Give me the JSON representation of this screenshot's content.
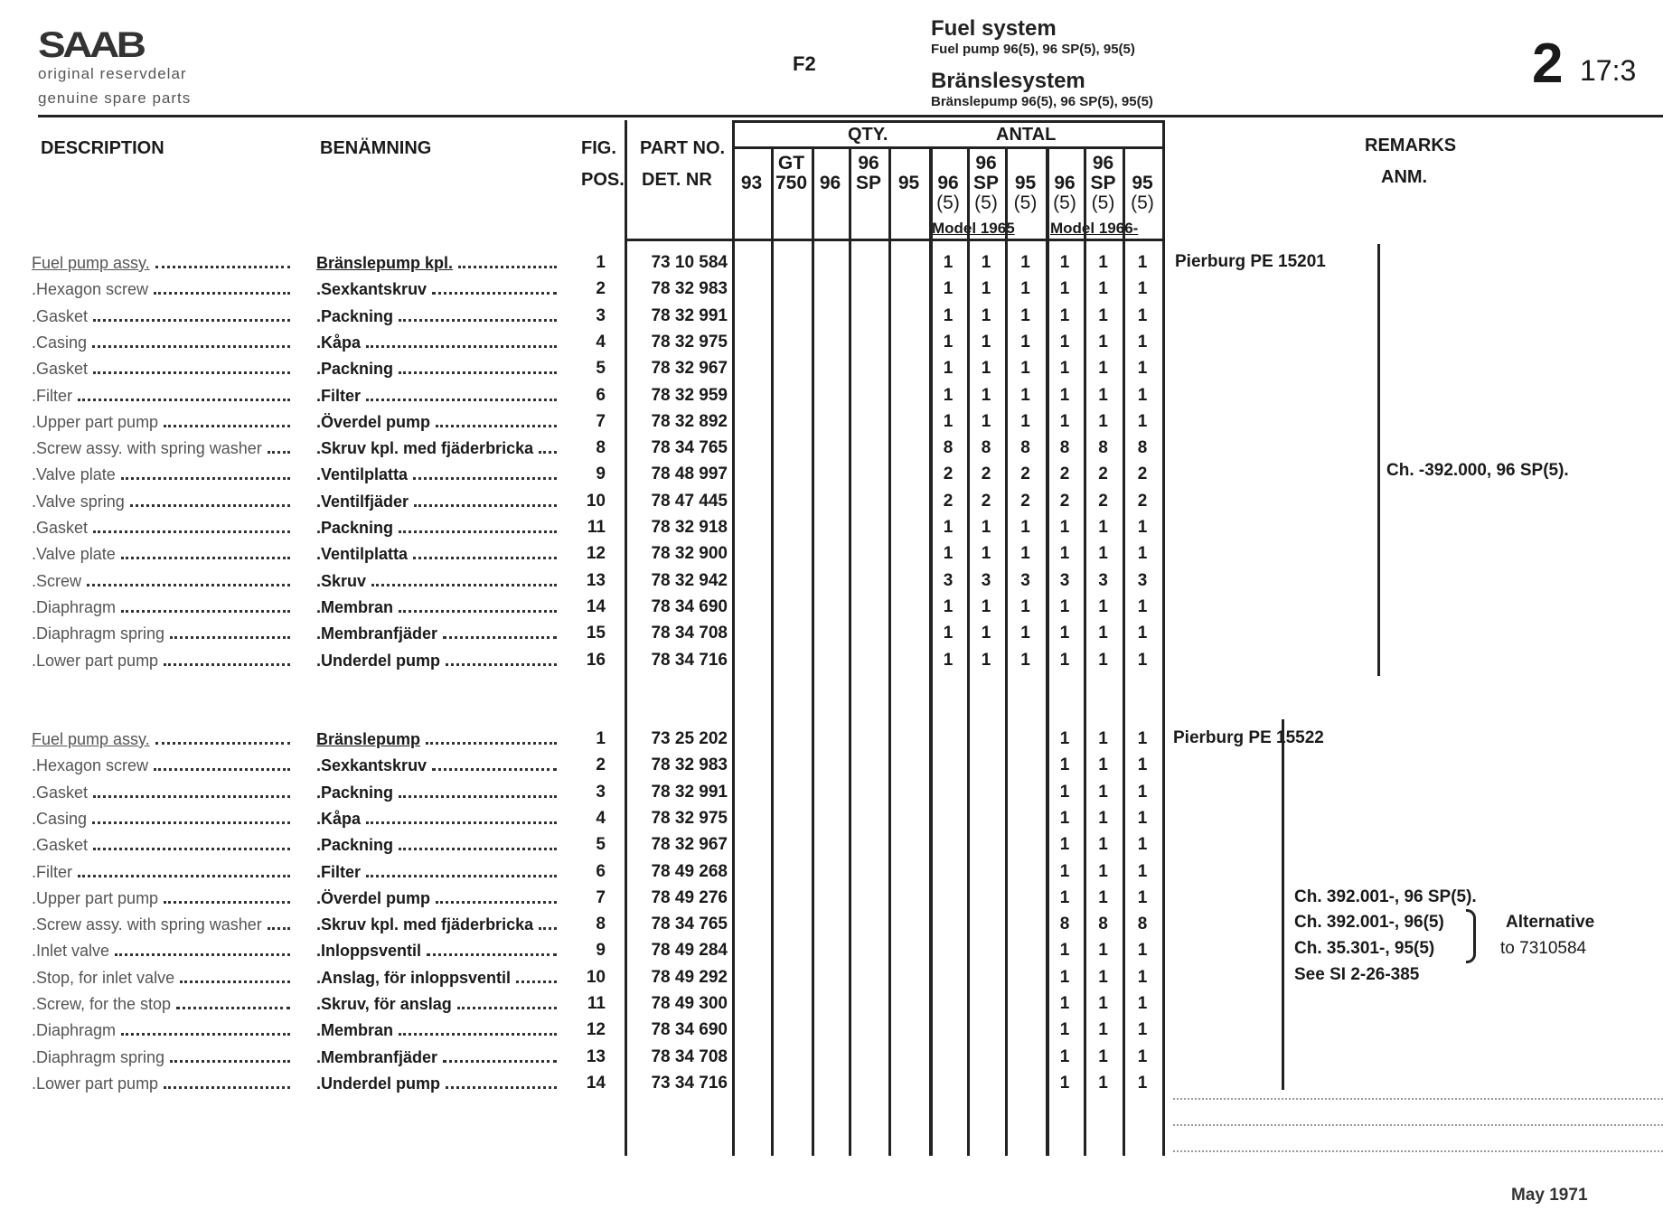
{
  "header": {
    "logo": "SAAB",
    "tagline_sv": "original reservdelar",
    "tagline_en": "genuine spare parts",
    "section_code": "F2",
    "title_en": "Fuel system",
    "subtitle_en": "Fuel pump 96(5), 96 SP(5), 95(5)",
    "title_sv": "Bränslesystem",
    "subtitle_sv": "Bränslepump 96(5), 96 SP(5), 95(5)",
    "page_major": "2",
    "page_minor": "17:3"
  },
  "columns": {
    "description": "DESCRIPTION",
    "benamning": "BENÄMNING",
    "fig": "FIG.",
    "pos": "POS.",
    "part_no": "PART NO.",
    "det_nr": "DET. NR",
    "qty": "QTY.",
    "antal": "ANTAL",
    "remarks": "REMARKS",
    "anm": "ANM.",
    "models": [
      {
        "top": "",
        "bottom": "93"
      },
      {
        "top": "GT",
        "bottom": "750"
      },
      {
        "top": "",
        "bottom": "96"
      },
      {
        "top": "96",
        "bottom": "SP"
      },
      {
        "top": "",
        "bottom": "95"
      },
      {
        "top": "",
        "bottom": "96",
        "sub": "(5)"
      },
      {
        "top": "96",
        "bottom": "SP",
        "sub": "(5)"
      },
      {
        "top": "",
        "bottom": "95",
        "sub": "(5)"
      },
      {
        "top": "",
        "bottom": "96",
        "sub": "(5)"
      },
      {
        "top": "96",
        "bottom": "SP",
        "sub": "(5)"
      },
      {
        "top": "",
        "bottom": "95",
        "sub": "(5)"
      }
    ],
    "model_1965": "Model 1965",
    "model_1966": "Model 1966-"
  },
  "groups": [
    {
      "remark_main": "Pierburg PE 15201",
      "remark_chassis": [
        "Ch. -392.000, 96 SP(5)."
      ],
      "rows": [
        {
          "desc": "Fuel pump assy.",
          "ben": "Bränslepump kpl.",
          "pos": "1",
          "part": "73 10 584",
          "qty": [
            "",
            "",
            "",
            "",
            "",
            "1",
            "1",
            "1",
            "1",
            "1",
            "1"
          ]
        },
        {
          "desc": ".Hexagon screw",
          "ben": ".Sexkantskruv",
          "pos": "2",
          "part": "78 32 983",
          "qty": [
            "",
            "",
            "",
            "",
            "",
            "1",
            "1",
            "1",
            "1",
            "1",
            "1"
          ]
        },
        {
          "desc": ".Gasket",
          "ben": ".Packning",
          "pos": "3",
          "part": "78 32 991",
          "qty": [
            "",
            "",
            "",
            "",
            "",
            "1",
            "1",
            "1",
            "1",
            "1",
            "1"
          ]
        },
        {
          "desc": ".Casing",
          "ben": ".Kåpa",
          "pos": "4",
          "part": "78 32 975",
          "qty": [
            "",
            "",
            "",
            "",
            "",
            "1",
            "1",
            "1",
            "1",
            "1",
            "1"
          ]
        },
        {
          "desc": ".Gasket",
          "ben": ".Packning",
          "pos": "5",
          "part": "78 32 967",
          "qty": [
            "",
            "",
            "",
            "",
            "",
            "1",
            "1",
            "1",
            "1",
            "1",
            "1"
          ]
        },
        {
          "desc": ".Filter",
          "ben": ".Filter",
          "pos": "6",
          "part": "78 32 959",
          "qty": [
            "",
            "",
            "",
            "",
            "",
            "1",
            "1",
            "1",
            "1",
            "1",
            "1"
          ]
        },
        {
          "desc": ".Upper part pump",
          "ben": ".Överdel pump",
          "pos": "7",
          "part": "78 32 892",
          "qty": [
            "",
            "",
            "",
            "",
            "",
            "1",
            "1",
            "1",
            "1",
            "1",
            "1"
          ]
        },
        {
          "desc": ".Screw assy. with spring washer",
          "ben": ".Skruv kpl. med fjäderbricka",
          "pos": "8",
          "part": "78 34 765",
          "qty": [
            "",
            "",
            "",
            "",
            "",
            "8",
            "8",
            "8",
            "8",
            "8",
            "8"
          ]
        },
        {
          "desc": ".Valve plate",
          "ben": ".Ventilplatta",
          "pos": "9",
          "part": "78 48 997",
          "qty": [
            "",
            "",
            "",
            "",
            "",
            "2",
            "2",
            "2",
            "2",
            "2",
            "2"
          ]
        },
        {
          "desc": ".Valve spring",
          "ben": ".Ventilfjäder",
          "pos": "10",
          "part": "78 47 445",
          "qty": [
            "",
            "",
            "",
            "",
            "",
            "2",
            "2",
            "2",
            "2",
            "2",
            "2"
          ]
        },
        {
          "desc": ".Gasket",
          "ben": ".Packning",
          "pos": "11",
          "part": "78 32 918",
          "qty": [
            "",
            "",
            "",
            "",
            "",
            "1",
            "1",
            "1",
            "1",
            "1",
            "1"
          ]
        },
        {
          "desc": ".Valve plate",
          "ben": ".Ventilplatta",
          "pos": "12",
          "part": "78 32 900",
          "qty": [
            "",
            "",
            "",
            "",
            "",
            "1",
            "1",
            "1",
            "1",
            "1",
            "1"
          ]
        },
        {
          "desc": ".Screw",
          "ben": ".Skruv",
          "pos": "13",
          "part": "78 32 942",
          "qty": [
            "",
            "",
            "",
            "",
            "",
            "3",
            "3",
            "3",
            "3",
            "3",
            "3"
          ]
        },
        {
          "desc": ".Diaphragm",
          "ben": ".Membran",
          "pos": "14",
          "part": "78 34 690",
          "qty": [
            "",
            "",
            "",
            "",
            "",
            "1",
            "1",
            "1",
            "1",
            "1",
            "1"
          ]
        },
        {
          "desc": ".Diaphragm spring",
          "ben": ".Membranfjäder",
          "pos": "15",
          "part": "78 34 708",
          "qty": [
            "",
            "",
            "",
            "",
            "",
            "1",
            "1",
            "1",
            "1",
            "1",
            "1"
          ]
        },
        {
          "desc": ".Lower part pump",
          "ben": ".Underdel pump",
          "pos": "16",
          "part": "78 34 716",
          "qty": [
            "",
            "",
            "",
            "",
            "",
            "1",
            "1",
            "1",
            "1",
            "1",
            "1"
          ]
        }
      ]
    },
    {
      "remark_main": "Pierburg PE 15522",
      "remark_chassis": [
        "Ch. 392.001-, 96 SP(5).",
        "Ch. 392.001-, 96(5)",
        "Ch. 35.301-, 95(5)",
        "See SI 2-26-385"
      ],
      "remark_alt": [
        "Alternative",
        "to 7310584"
      ],
      "rows": [
        {
          "desc": "Fuel pump assy.",
          "ben": "Bränslepump",
          "pos": "1",
          "part": "73 25 202",
          "qty": [
            "",
            "",
            "",
            "",
            "",
            "",
            "",
            "",
            "1",
            "1",
            "1"
          ]
        },
        {
          "desc": ".Hexagon screw",
          "ben": ".Sexkantskruv",
          "pos": "2",
          "part": "78 32 983",
          "qty": [
            "",
            "",
            "",
            "",
            "",
            "",
            "",
            "",
            "1",
            "1",
            "1"
          ]
        },
        {
          "desc": ".Gasket",
          "ben": ".Packning",
          "pos": "3",
          "part": "78 32 991",
          "qty": [
            "",
            "",
            "",
            "",
            "",
            "",
            "",
            "",
            "1",
            "1",
            "1"
          ]
        },
        {
          "desc": ".Casing",
          "ben": ".Kåpa",
          "pos": "4",
          "part": "78 32 975",
          "qty": [
            "",
            "",
            "",
            "",
            "",
            "",
            "",
            "",
            "1",
            "1",
            "1"
          ]
        },
        {
          "desc": ".Gasket",
          "ben": ".Packning",
          "pos": "5",
          "part": "78 32 967",
          "qty": [
            "",
            "",
            "",
            "",
            "",
            "",
            "",
            "",
            "1",
            "1",
            "1"
          ]
        },
        {
          "desc": ".Filter",
          "ben": ".Filter",
          "pos": "6",
          "part": "78 49 268",
          "qty": [
            "",
            "",
            "",
            "",
            "",
            "",
            "",
            "",
            "1",
            "1",
            "1"
          ]
        },
        {
          "desc": ".Upper part pump",
          "ben": ".Överdel pump",
          "pos": "7",
          "part": "78 49 276",
          "qty": [
            "",
            "",
            "",
            "",
            "",
            "",
            "",
            "",
            "1",
            "1",
            "1"
          ]
        },
        {
          "desc": ".Screw assy. with spring washer",
          "ben": ".Skruv kpl. med fjäderbricka",
          "pos": "8",
          "part": "78 34 765",
          "qty": [
            "",
            "",
            "",
            "",
            "",
            "",
            "",
            "",
            "8",
            "8",
            "8"
          ]
        },
        {
          "desc": ".Inlet valve",
          "ben": ".Inloppsventil",
          "pos": "9",
          "part": "78 49 284",
          "qty": [
            "",
            "",
            "",
            "",
            "",
            "",
            "",
            "",
            "1",
            "1",
            "1"
          ]
        },
        {
          "desc": ".Stop, for inlet valve",
          "ben": ".Anslag, för inloppsventil",
          "pos": "10",
          "part": "78 49 292",
          "qty": [
            "",
            "",
            "",
            "",
            "",
            "",
            "",
            "",
            "1",
            "1",
            "1"
          ]
        },
        {
          "desc": ".Screw, for the stop",
          "ben": ".Skruv, för anslag",
          "pos": "11",
          "part": "78 49 300",
          "qty": [
            "",
            "",
            "",
            "",
            "",
            "",
            "",
            "",
            "1",
            "1",
            "1"
          ]
        },
        {
          "desc": ".Diaphragm",
          "ben": ".Membran",
          "pos": "12",
          "part": "78 34 690",
          "qty": [
            "",
            "",
            "",
            "",
            "",
            "",
            "",
            "",
            "1",
            "1",
            "1"
          ]
        },
        {
          "desc": ".Diaphragm spring",
          "ben": ".Membranfjäder",
          "pos": "13",
          "part": "78 34 708",
          "qty": [
            "",
            "",
            "",
            "",
            "",
            "",
            "",
            "",
            "1",
            "1",
            "1"
          ]
        },
        {
          "desc": ".Lower part pump",
          "ben": ".Underdel pump",
          "pos": "14",
          "part": "73 34 716",
          "qty": [
            "",
            "",
            "",
            "",
            "",
            "",
            "",
            "",
            "1",
            "1",
            "1"
          ]
        }
      ]
    }
  ],
  "footer": {
    "date": "May 1971"
  }
}
